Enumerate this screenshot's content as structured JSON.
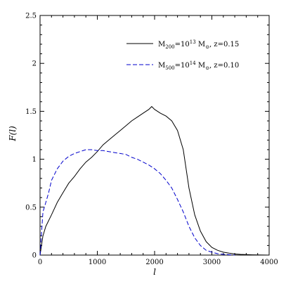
{
  "chart_data": {
    "type": "line",
    "xlabel": "l",
    "ylabel": "F(l)",
    "xlim": [
      0,
      4000
    ],
    "ylim": [
      0,
      2.5
    ],
    "x_ticks": [
      0,
      1000,
      2000,
      3000,
      4000
    ],
    "y_ticks": [
      0,
      0.5,
      1,
      1.5,
      2,
      2.5
    ],
    "x_tick_labels": [
      "0",
      "1000",
      "2000",
      "3000",
      "4000"
    ],
    "y_tick_labels": [
      "0",
      "0.5",
      "1",
      "1.5",
      "2",
      "2.5"
    ],
    "legend_placement": "top-right",
    "series": [
      {
        "name": "M200=10^13 M⊙, z=0.15",
        "color": "#000000",
        "dash": "solid",
        "x": [
          0,
          50,
          100,
          200,
          300,
          400,
          500,
          600,
          700,
          800,
          900,
          1000,
          1100,
          1200,
          1300,
          1400,
          1500,
          1600,
          1700,
          1800,
          1900,
          1950,
          2000,
          2100,
          2200,
          2300,
          2400,
          2500,
          2600,
          2700,
          2800,
          2900,
          3000,
          3100,
          3200,
          3300,
          3400,
          3500,
          3700,
          4000
        ],
        "y": [
          0.0,
          0.2,
          0.3,
          0.42,
          0.55,
          0.65,
          0.75,
          0.82,
          0.9,
          0.97,
          1.02,
          1.08,
          1.15,
          1.2,
          1.25,
          1.3,
          1.35,
          1.4,
          1.44,
          1.48,
          1.52,
          1.55,
          1.52,
          1.48,
          1.45,
          1.4,
          1.3,
          1.1,
          0.7,
          0.42,
          0.25,
          0.14,
          0.08,
          0.05,
          0.03,
          0.02,
          0.012,
          0.007,
          0.003,
          0.0
        ]
      },
      {
        "name": "M500=10^14 M⊙, z=0.10",
        "color": "#0000cc",
        "dash": "dashed",
        "x": [
          0,
          50,
          100,
          150,
          200,
          300,
          400,
          500,
          600,
          700,
          800,
          900,
          1000,
          1100,
          1200,
          1300,
          1400,
          1500,
          1600,
          1700,
          1800,
          1900,
          2000,
          2100,
          2200,
          2300,
          2400,
          2500,
          2600,
          2700,
          2800,
          2900,
          3000,
          3100,
          3200,
          3300,
          3400
        ],
        "y": [
          0.0,
          0.45,
          0.55,
          0.65,
          0.78,
          0.9,
          0.98,
          1.03,
          1.06,
          1.08,
          1.1,
          1.1,
          1.09,
          1.09,
          1.08,
          1.07,
          1.06,
          1.05,
          1.02,
          1.0,
          0.97,
          0.94,
          0.9,
          0.85,
          0.78,
          0.7,
          0.58,
          0.45,
          0.3,
          0.18,
          0.1,
          0.05,
          0.03,
          0.015,
          0.008,
          0.004,
          0.0
        ]
      }
    ],
    "legend": [
      {
        "pre": "M",
        "sub1": "200",
        "mid": "=10",
        "sup": "13",
        "post": " M",
        "sun": "⊙",
        "tail": ", z=0.15"
      },
      {
        "pre": "M",
        "sub1": "500",
        "mid": "=10",
        "sup": "14",
        "post": " M",
        "sun": "⊙",
        "tail": ", z=0.10"
      }
    ]
  }
}
